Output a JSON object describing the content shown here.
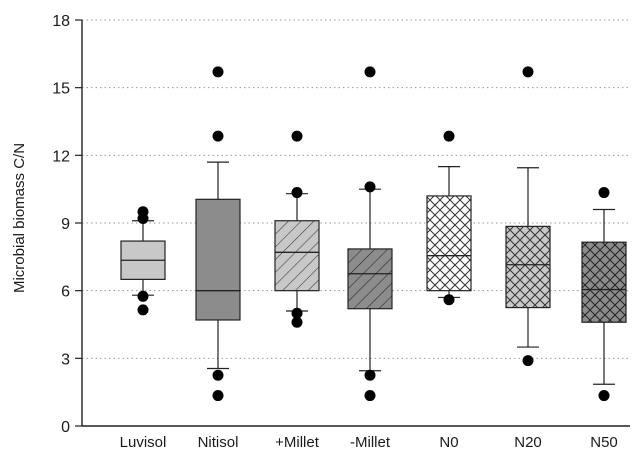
{
  "chart_data": {
    "type": "box",
    "title": "",
    "xlabel": "",
    "ylabel": "Microbial biomass C/N",
    "ylim": [
      0,
      18
    ],
    "yticks": [
      0,
      3,
      6,
      9,
      12,
      15,
      18
    ],
    "grid": "horizontal-dotted",
    "categories": [
      "Luvisol",
      "Nitisol",
      "+Millet",
      "-Millet",
      "N0",
      "N20",
      "N50"
    ],
    "boxes": [
      {
        "category": "Luvisol",
        "q1": 6.5,
        "median": 7.35,
        "q3": 8.2,
        "whisker_low": 5.8,
        "whisker_high": 9.1,
        "outliers": [
          9.5,
          9.2,
          5.75,
          5.15
        ],
        "fill": "#c8c8c8",
        "pattern": "none"
      },
      {
        "category": "Nitisol",
        "q1": 4.7,
        "median": 6.0,
        "q3": 10.05,
        "whisker_low": 2.55,
        "whisker_high": 11.7,
        "outliers": [
          15.7,
          12.85,
          2.25,
          1.35
        ],
        "fill": "#8c8c8c",
        "pattern": "none"
      },
      {
        "category": "+Millet",
        "q1": 6.0,
        "median": 7.7,
        "q3": 9.1,
        "whisker_low": 5.1,
        "whisker_high": 10.3,
        "outliers": [
          12.85,
          10.35,
          5.0,
          4.6
        ],
        "fill": "#c8c8c8",
        "pattern": "diagonal"
      },
      {
        "category": "-Millet",
        "q1": 5.2,
        "median": 6.75,
        "q3": 7.85,
        "whisker_low": 2.45,
        "whisker_high": 10.5,
        "outliers": [
          15.7,
          10.6,
          2.25,
          1.35
        ],
        "fill": "#8c8c8c",
        "pattern": "diagonal"
      },
      {
        "category": "N0",
        "q1": 6.0,
        "median": 7.55,
        "q3": 10.2,
        "whisker_low": 5.7,
        "whisker_high": 11.5,
        "outliers": [
          12.85,
          5.6
        ],
        "fill": "#ffffff",
        "pattern": "crosshatch"
      },
      {
        "category": "N20",
        "q1": 5.25,
        "median": 7.15,
        "q3": 8.85,
        "whisker_low": 3.5,
        "whisker_high": 11.45,
        "outliers": [
          15.7,
          2.9
        ],
        "fill": "#c8c8c8",
        "pattern": "crosshatch"
      },
      {
        "category": "N50",
        "q1": 4.6,
        "median": 6.05,
        "q3": 8.15,
        "whisker_low": 1.85,
        "whisker_high": 9.6,
        "outliers": [
          10.35,
          1.35
        ],
        "fill": "#8c8c8c",
        "pattern": "crosshatch"
      }
    ]
  }
}
